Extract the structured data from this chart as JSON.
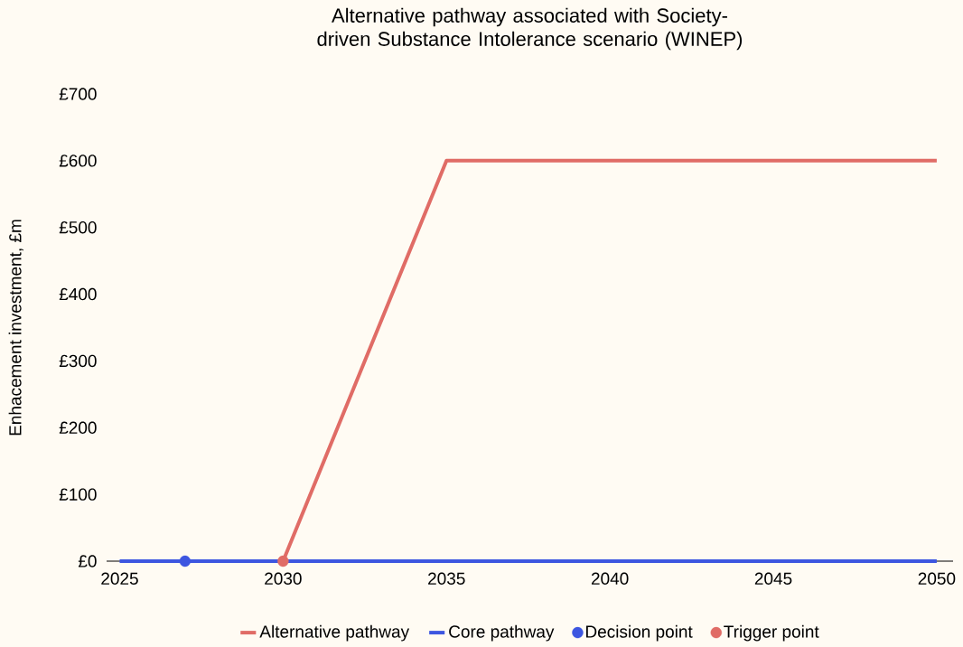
{
  "chart_data": {
    "type": "line",
    "title": "Alternative pathway associated with Society-driven Substance Intolerance scenario (WINEP)",
    "ylabel": "Enhacement investment, £m",
    "xlim": [
      2024.6,
      2050.5
    ],
    "xticks": [
      2025,
      2030,
      2035,
      2040,
      2045,
      2050
    ],
    "ylim": [
      0,
      700
    ],
    "yticks": [
      {
        "value": 0,
        "label": "£0"
      },
      {
        "value": 100,
        "label": "£100"
      },
      {
        "value": 200,
        "label": "£200"
      },
      {
        "value": 300,
        "label": "£300"
      },
      {
        "value": 400,
        "label": "£400"
      },
      {
        "value": 500,
        "label": "£500"
      },
      {
        "value": 600,
        "label": "£600"
      },
      {
        "value": 700,
        "label": "£700"
      }
    ],
    "grid": false,
    "legend": "bottom",
    "series": [
      {
        "name": "Alternative pathway",
        "type": "line",
        "marker": "none",
        "color": "#e06c66",
        "x": [
          2030,
          2035,
          2050
        ],
        "values": [
          0,
          600,
          600
        ]
      },
      {
        "name": "Core pathway",
        "type": "line",
        "marker": "none",
        "color": "#3d56e0",
        "x": [
          2025,
          2050
        ],
        "values": [
          0,
          0
        ]
      },
      {
        "name": "Decision point",
        "type": "scatter",
        "marker": "circle",
        "color": "#3d56e0",
        "x": [
          2027
        ],
        "values": [
          0
        ]
      },
      {
        "name": "Trigger point",
        "type": "scatter",
        "marker": "circle",
        "color": "#e06c66",
        "x": [
          2030
        ],
        "values": [
          0
        ]
      }
    ]
  }
}
